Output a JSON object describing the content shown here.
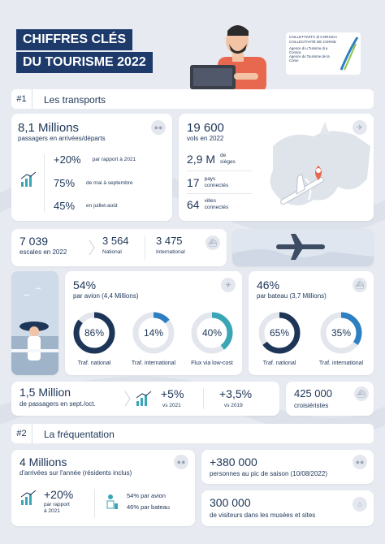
{
  "header": {
    "title_line1": "CHIFFRES CLÉS",
    "title_line2": "DU TOURISME 2022"
  },
  "logo": {
    "line1": "COLLETTIVITÀ di CORSICA",
    "line2": "COLLECTIVITÉ DE CORSE",
    "line3": "Agence di u Turismu di a Corsica",
    "line4": "Agence du Tourisme de la Corse"
  },
  "colors": {
    "navy": "#1d3557",
    "teal": "#3aa6b5",
    "blue": "#2e7fc1",
    "bg": "#e7ebf1",
    "title_bg": "#1d3a6b"
  },
  "section1": {
    "num": "#1",
    "title": "Les transports"
  },
  "passengers": {
    "value": "8,1 Millions",
    "label": "passagers en arrivées/départs",
    "stats": [
      {
        "value": "+20%",
        "label": "par rapport à 2021"
      },
      {
        "value": "75%",
        "label": "de mai à septembre"
      },
      {
        "value": "45%",
        "label": "en juillet-août"
      }
    ]
  },
  "flights": {
    "value": "19 600",
    "label": "vols en 2022",
    "stats": [
      {
        "value": "2,9 M",
        "label1": "de",
        "label2": "sièges"
      },
      {
        "value": "17",
        "label1": "pays",
        "label2": "connectés"
      },
      {
        "value": "64",
        "label1": "villes",
        "label2": "connectés"
      }
    ]
  },
  "calls": {
    "value": "7 039",
    "label": "escales en 2022",
    "national_value": "3 564",
    "national_label": "National",
    "international_value": "3 475",
    "international_label": "International"
  },
  "air": {
    "value": "54%",
    "label": "par avion (4,4 Millions)",
    "donuts": [
      {
        "pct": "86%",
        "fraction": 0.86,
        "label": "Traf. national",
        "color": "#1d3557"
      },
      {
        "pct": "14%",
        "fraction": 0.14,
        "label": "Traf. international",
        "color": "#2e7fc1"
      },
      {
        "pct": "40%",
        "fraction": 0.4,
        "label": "Flux via low-cost",
        "color": "#3aa6b5"
      }
    ]
  },
  "sea": {
    "value": "46%",
    "label": "par bateau (3,7 Millions)",
    "donuts": [
      {
        "pct": "65%",
        "fraction": 0.65,
        "label": "Traf. national",
        "color": "#1d3557"
      },
      {
        "pct": "35%",
        "fraction": 0.35,
        "label": "Traf. international",
        "color": "#2e7fc1"
      }
    ]
  },
  "sept": {
    "value": "1,5 Million",
    "label": "de passagers en sept./oct.",
    "stat1_value": "+5%",
    "stat1_label": "vs 2021",
    "stat2_value": "+3,5%",
    "stat2_label": "vs 2019"
  },
  "cruise": {
    "value": "425 000",
    "label": "croisiéristes"
  },
  "section2": {
    "num": "#2",
    "title": "La fréquentation"
  },
  "arrivals": {
    "value": "4 Millions",
    "label": "d'arrivées sur l'année (résidents inclus)",
    "growth_value": "+20%",
    "growth_label1": "par rapport",
    "growth_label2": "à 2021",
    "air_label": "54% par avion",
    "sea_label": "46% par bateau"
  },
  "peak": {
    "value": "+380 000",
    "label": "personnes au pic de saison (10/08/2022)"
  },
  "museums": {
    "value": "300 000",
    "label": "de visiteurs dans les musées et sites"
  }
}
